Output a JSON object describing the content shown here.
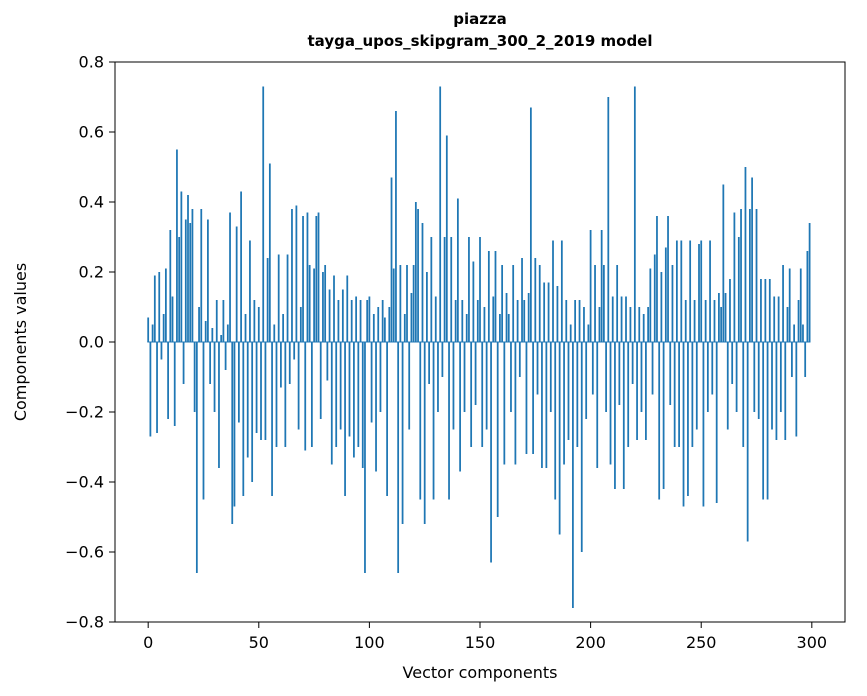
{
  "figure": {
    "title_line1": "piazza",
    "title_line2": "tayga_upos_skipgram_300_2_2019 model",
    "xlabel": "Vector components",
    "ylabel": "Components values"
  },
  "chart_data": {
    "type": "bar",
    "title": "piazza — tayga_upos_skipgram_300_2_2019 model",
    "xlabel": "Vector components",
    "ylabel": "Components values",
    "bar_color": "#1f77b4",
    "x_start": 0,
    "xlim": [
      -15,
      315
    ],
    "ylim": [
      -0.8,
      0.8
    ],
    "grid": false,
    "legend": "none",
    "xticks": [
      {
        "v": 0,
        "label": "0"
      },
      {
        "v": 50,
        "label": "50"
      },
      {
        "v": 100,
        "label": "100"
      },
      {
        "v": 150,
        "label": "150"
      },
      {
        "v": 200,
        "label": "200"
      },
      {
        "v": 250,
        "label": "250"
      },
      {
        "v": 300,
        "label": "300"
      }
    ],
    "yticks": [
      {
        "v": -0.8,
        "label": "−0.8"
      },
      {
        "v": -0.6,
        "label": "−0.6"
      },
      {
        "v": -0.4,
        "label": "−0.4"
      },
      {
        "v": -0.2,
        "label": "−0.2"
      },
      {
        "v": 0.0,
        "label": "0.0"
      },
      {
        "v": 0.2,
        "label": "0.2"
      },
      {
        "v": 0.4,
        "label": "0.4"
      },
      {
        "v": 0.6,
        "label": "0.6"
      },
      {
        "v": 0.8,
        "label": "0.8"
      }
    ],
    "values": [
      0.07,
      -0.27,
      0.05,
      0.19,
      -0.26,
      0.2,
      -0.05,
      0.08,
      0.21,
      -0.22,
      0.32,
      0.13,
      -0.24,
      0.55,
      0.3,
      0.43,
      -0.12,
      0.35,
      0.42,
      0.34,
      0.38,
      -0.2,
      -0.66,
      0.1,
      0.38,
      -0.45,
      0.06,
      0.35,
      -0.12,
      0.04,
      -0.2,
      0.12,
      -0.36,
      0.02,
      0.12,
      -0.08,
      0.05,
      0.37,
      -0.52,
      -0.47,
      0.33,
      -0.23,
      0.43,
      -0.44,
      0.08,
      -0.33,
      0.29,
      -0.4,
      0.12,
      -0.26,
      0.1,
      -0.28,
      0.73,
      -0.28,
      0.24,
      0.51,
      -0.44,
      0.05,
      -0.3,
      0.25,
      -0.13,
      0.08,
      -0.3,
      0.25,
      -0.12,
      0.38,
      -0.05,
      0.39,
      -0.25,
      0.1,
      0.36,
      -0.31,
      0.37,
      0.22,
      -0.3,
      0.21,
      0.36,
      0.37,
      -0.22,
      0.2,
      0.22,
      -0.11,
      0.15,
      -0.35,
      0.19,
      -0.3,
      0.12,
      -0.25,
      0.15,
      -0.44,
      0.19,
      -0.27,
      0.12,
      -0.33,
      0.13,
      -0.3,
      0.12,
      -0.36,
      -0.66,
      0.12,
      0.13,
      -0.23,
      0.08,
      -0.37,
      0.1,
      -0.2,
      0.12,
      0.07,
      -0.44,
      0.1,
      0.47,
      0.21,
      0.66,
      -0.66,
      0.22,
      -0.52,
      0.08,
      0.22,
      -0.25,
      0.14,
      0.22,
      0.4,
      0.38,
      -0.45,
      0.34,
      -0.52,
      0.2,
      -0.12,
      0.3,
      -0.45,
      0.13,
      -0.2,
      0.73,
      -0.1,
      0.3,
      0.59,
      -0.45,
      0.3,
      -0.25,
      0.12,
      0.41,
      -0.37,
      0.12,
      -0.2,
      0.08,
      0.3,
      -0.3,
      0.23,
      -0.18,
      0.12,
      0.3,
      -0.3,
      0.1,
      -0.25,
      0.26,
      -0.63,
      0.13,
      0.26,
      -0.5,
      0.08,
      0.22,
      -0.35,
      0.14,
      0.08,
      -0.2,
      0.22,
      -0.35,
      0.12,
      -0.1,
      0.24,
      0.12,
      -0.32,
      0.14,
      0.67,
      -0.32,
      0.24,
      -0.15,
      0.22,
      -0.36,
      0.17,
      -0.36,
      0.17,
      -0.2,
      0.29,
      -0.45,
      0.16,
      -0.55,
      0.29,
      -0.35,
      0.12,
      -0.28,
      0.05,
      -0.76,
      0.12,
      -0.3,
      0.12,
      -0.6,
      0.1,
      -0.22,
      0.05,
      0.32,
      -0.15,
      0.22,
      -0.36,
      0.1,
      0.32,
      0.22,
      -0.2,
      0.7,
      -0.35,
      0.13,
      -0.42,
      0.22,
      -0.18,
      0.13,
      -0.42,
      0.13,
      -0.3,
      0.1,
      -0.12,
      0.73,
      -0.28,
      0.1,
      -0.2,
      0.08,
      -0.28,
      0.1,
      0.21,
      -0.15,
      0.25,
      0.36,
      -0.45,
      0.2,
      -0.42,
      0.27,
      0.36,
      -0.18,
      0.22,
      -0.3,
      0.29,
      -0.3,
      0.29,
      -0.47,
      0.12,
      -0.44,
      0.29,
      -0.3,
      0.12,
      -0.25,
      0.28,
      0.29,
      -0.47,
      0.12,
      -0.2,
      0.29,
      -0.15,
      0.12,
      -0.46,
      0.14,
      0.1,
      0.45,
      0.14,
      -0.25,
      0.18,
      -0.12,
      0.37,
      -0.2,
      0.3,
      0.38,
      -0.3,
      0.5,
      -0.57,
      0.38,
      0.47,
      -0.2,
      0.38,
      -0.22,
      0.18,
      -0.45,
      0.18,
      -0.45,
      0.18,
      -0.25,
      0.13,
      -0.28,
      0.13,
      -0.2,
      0.22,
      -0.28,
      0.1,
      0.21,
      -0.1,
      0.05,
      -0.27,
      0.12,
      0.21,
      0.05,
      -0.1,
      0.26,
      0.34
    ]
  }
}
